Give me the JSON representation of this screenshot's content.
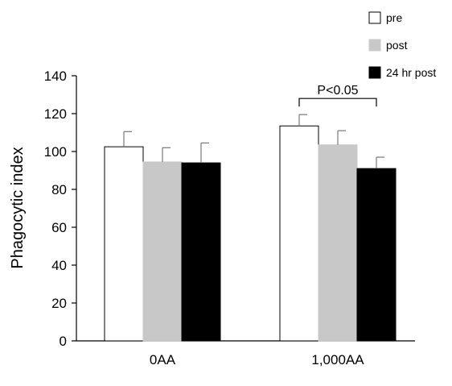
{
  "chart_data": {
    "type": "bar",
    "title": "",
    "xlabel": "",
    "ylabel": "Phagocytic index",
    "ylim": [
      0,
      140
    ],
    "yticks": [
      0,
      20,
      40,
      60,
      80,
      100,
      120,
      140
    ],
    "grid": false,
    "legend_position": "top-right",
    "categories": [
      "0AA",
      "1,000AA"
    ],
    "series": [
      {
        "name": "pre",
        "color": "#ffffff",
        "values": [
          102.5,
          113.5
        ],
        "errors": [
          8,
          6
        ]
      },
      {
        "name": "post",
        "color": "#c8c8c8",
        "values": [
          94.5,
          103.5
        ],
        "errors": [
          7.5,
          7.5
        ]
      },
      {
        "name": "24 hr post",
        "color": "#000000",
        "values": [
          94,
          91
        ],
        "errors": [
          10.5,
          6
        ]
      }
    ],
    "annotations": [
      {
        "text": "P<0.05",
        "category": "1,000AA",
        "from_series": 0,
        "to_series": 2,
        "y": 128
      }
    ]
  }
}
